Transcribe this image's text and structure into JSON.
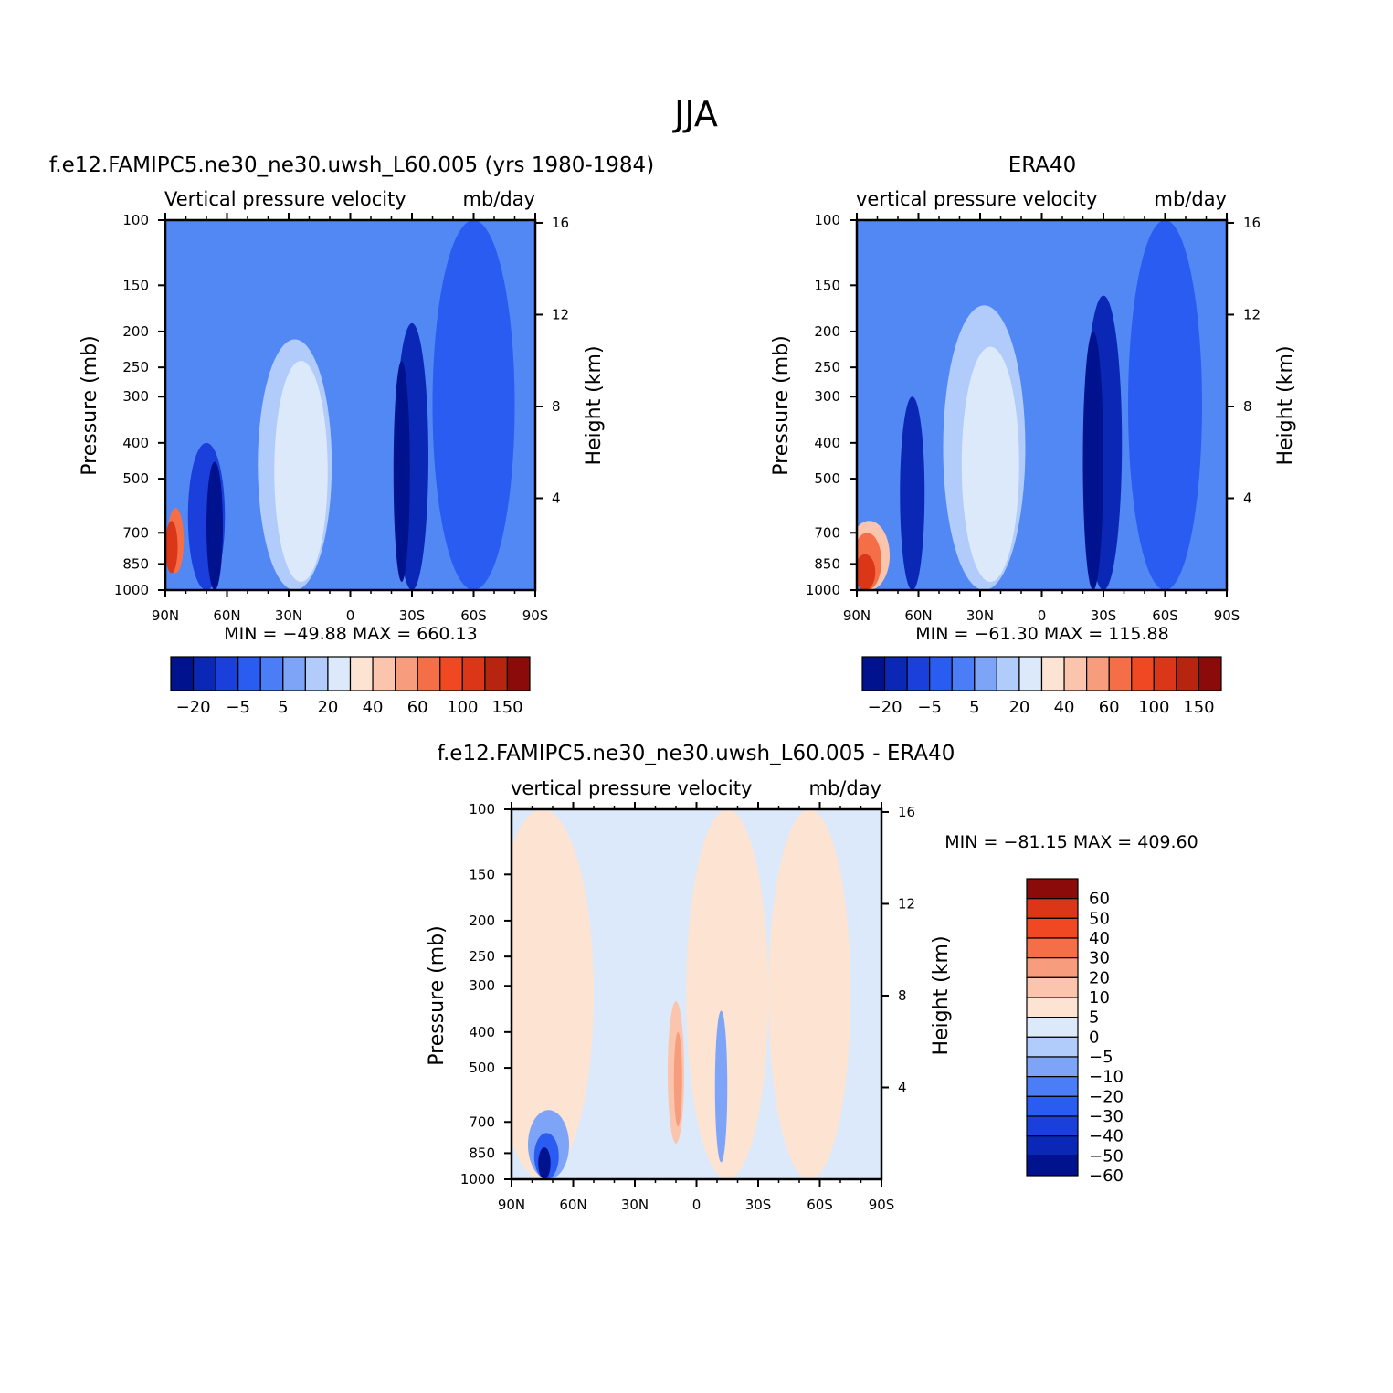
{
  "page_title": "JJA",
  "colors": {
    "bg_model": "#5288f4",
    "bg_diff": "#dbe9fb",
    "levels_model": [
      "#00128e",
      "#0b27b6",
      "#1a3fdb",
      "#2a5cf2",
      "#4a7df6",
      "#7ea4f7",
      "#b1cbfa",
      "#dbe9fb",
      "#fde4d2",
      "#fbc5ad",
      "#f79d7d",
      "#f46e48",
      "#ef4822",
      "#da3617",
      "#b72510",
      "#8b0a0a"
    ],
    "levels_diff": [
      "#00128e",
      "#0b27b6",
      "#1a3fdb",
      "#2a5cf2",
      "#4a7df6",
      "#7ea4f7",
      "#b1cbfa",
      "#dbe9fb",
      "#fde4d2",
      "#fbc5ad",
      "#f79d7d",
      "#f46e48",
      "#ef4822",
      "#da3617",
      "#8b0a0a"
    ]
  },
  "chart_data": [
    {
      "id": "model",
      "type": "heatmap",
      "case_title": "f.e12.FAMIPC5.ne30_ne30.uwsh_L60.005 (yrs 1980-1984)",
      "subtitle_left": "Vertical pressure velocity",
      "subtitle_right": "mb/day",
      "xlabel": "",
      "ylabel": "Pressure (mb)",
      "ylabel_right": "Height (km)",
      "x_ticks": [
        "90N",
        "60N",
        "30N",
        "0",
        "30S",
        "60S",
        "90S"
      ],
      "x_range": [
        90,
        -90
      ],
      "y_ticks": [
        100,
        150,
        200,
        250,
        300,
        400,
        500,
        700,
        850,
        1000
      ],
      "y_range": [
        100,
        1000
      ],
      "y_right_ticks": [
        16,
        12,
        8,
        4
      ],
      "min_max_text": "MIN = -49.88   MAX = 660.13",
      "colorbar_labels": [
        "-20",
        "-5",
        "5",
        "20",
        "40",
        "60",
        "100",
        "150"
      ],
      "colorbar_orientation": "horizontal",
      "features": [
        {
          "lat": -30,
          "dlat": 8,
          "p_top": 190,
          "p_bot": 1000,
          "level": 1
        },
        {
          "lat": -25,
          "dlat": 4,
          "p_top": 240,
          "p_bot": 950,
          "level": 0
        },
        {
          "lat": 27,
          "dlat": 18,
          "p_top": 210,
          "p_bot": 1000,
          "level": 6
        },
        {
          "lat": 24,
          "dlat": 13,
          "p_top": 240,
          "p_bot": 950,
          "level": 7
        },
        {
          "lat": 70,
          "dlat": 9,
          "p_top": 400,
          "p_bot": 1000,
          "level": 2
        },
        {
          "lat": 66,
          "dlat": 4,
          "p_top": 450,
          "p_bot": 1000,
          "level": 0
        },
        {
          "lat": 85,
          "dlat": 4,
          "p_top": 600,
          "p_bot": 900,
          "level": 11
        },
        {
          "lat": 87,
          "dlat": 3,
          "p_top": 650,
          "p_bot": 900,
          "level": 13
        },
        {
          "lat": -60,
          "dlat": 20,
          "p_top": 100,
          "p_bot": 1000,
          "level": 3
        }
      ]
    },
    {
      "id": "obs",
      "type": "heatmap",
      "case_title": "ERA40",
      "subtitle_left": "vertical pressure velocity",
      "subtitle_right": "mb/day",
      "xlabel": "",
      "ylabel": "Pressure (mb)",
      "ylabel_right": "Height (km)",
      "x_ticks": [
        "90N",
        "60N",
        "30N",
        "0",
        "30S",
        "60S",
        "90S"
      ],
      "x_range": [
        90,
        -90
      ],
      "y_ticks": [
        100,
        150,
        200,
        250,
        300,
        400,
        500,
        700,
        850,
        1000
      ],
      "y_range": [
        100,
        1000
      ],
      "y_right_ticks": [
        16,
        12,
        8,
        4
      ],
      "min_max_text": "MIN = -61.30   MAX = 115.88",
      "colorbar_labels": [
        "-20",
        "-5",
        "5",
        "20",
        "40",
        "60",
        "100",
        "150"
      ],
      "colorbar_orientation": "horizontal",
      "features": [
        {
          "lat": -60,
          "dlat": 18,
          "p_top": 100,
          "p_bot": 1000,
          "level": 3
        },
        {
          "lat": -30,
          "dlat": 9,
          "p_top": 160,
          "p_bot": 1000,
          "level": 1
        },
        {
          "lat": -25,
          "dlat": 5,
          "p_top": 200,
          "p_bot": 1000,
          "level": 0
        },
        {
          "lat": 28,
          "dlat": 20,
          "p_top": 170,
          "p_bot": 1000,
          "level": 6
        },
        {
          "lat": 25,
          "dlat": 14,
          "p_top": 220,
          "p_bot": 950,
          "level": 7
        },
        {
          "lat": 63,
          "dlat": 6,
          "p_top": 300,
          "p_bot": 1000,
          "level": 1
        },
        {
          "lat": 84,
          "dlat": 10,
          "p_top": 650,
          "p_bot": 1000,
          "level": 9
        },
        {
          "lat": 85,
          "dlat": 7,
          "p_top": 700,
          "p_bot": 1000,
          "level": 11
        },
        {
          "lat": 86,
          "dlat": 5,
          "p_top": 800,
          "p_bot": 1000,
          "level": 13
        }
      ]
    },
    {
      "id": "diff",
      "type": "heatmap",
      "case_title": "f.e12.FAMIPC5.ne30_ne30.uwsh_L60.005 - ERA40",
      "subtitle_left": "vertical pressure velocity",
      "subtitle_right": "mb/day",
      "xlabel": "",
      "ylabel": "Pressure (mb)",
      "ylabel_right": "Height (km)",
      "x_ticks": [
        "90N",
        "60N",
        "30N",
        "0",
        "30S",
        "60S",
        "90S"
      ],
      "x_range": [
        90,
        -90
      ],
      "y_ticks": [
        100,
        150,
        200,
        250,
        300,
        400,
        500,
        700,
        850,
        1000
      ],
      "y_range": [
        100,
        1000
      ],
      "y_right_ticks": [
        16,
        12,
        8,
        4
      ],
      "min_max_text": "MIN = -81.15   MAX = 409.60",
      "colorbar_labels": [
        "60",
        "50",
        "40",
        "30",
        "20",
        "10",
        "5",
        "0",
        "-5",
        "-10",
        "-20",
        "-30",
        "-40",
        "-50",
        "-60"
      ],
      "colorbar_orientation": "vertical",
      "features": [
        {
          "lat": 75,
          "dlat": 25,
          "p_top": 100,
          "p_bot": 1000,
          "level": 8
        },
        {
          "lat": 30,
          "dlat": 15,
          "p_top": 100,
          "p_bot": 1000,
          "level": 7
        },
        {
          "lat": -15,
          "dlat": 20,
          "p_top": 100,
          "p_bot": 1000,
          "level": 8
        },
        {
          "lat": -55,
          "dlat": 20,
          "p_top": 100,
          "p_bot": 1000,
          "level": 8
        },
        {
          "lat": 10,
          "dlat": 4,
          "p_top": 330,
          "p_bot": 800,
          "level": 9
        },
        {
          "lat": 9,
          "dlat": 2,
          "p_top": 400,
          "p_bot": 720,
          "level": 10
        },
        {
          "lat": -12,
          "dlat": 3,
          "p_top": 350,
          "p_bot": 900,
          "level": 5
        },
        {
          "lat": 72,
          "dlat": 10,
          "p_top": 650,
          "p_bot": 1000,
          "level": 5
        },
        {
          "lat": 73,
          "dlat": 6,
          "p_top": 750,
          "p_bot": 1000,
          "level": 3
        },
        {
          "lat": 74,
          "dlat": 3,
          "p_top": 820,
          "p_bot": 1000,
          "level": 0
        }
      ]
    }
  ]
}
